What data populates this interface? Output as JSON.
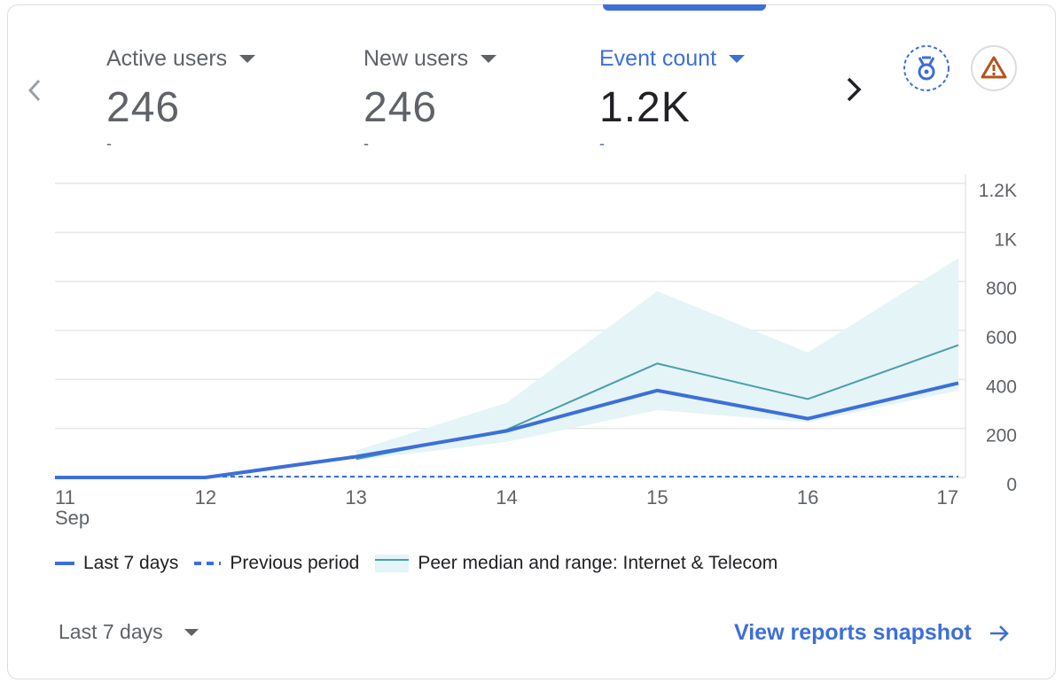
{
  "metrics": [
    {
      "label": "Active users",
      "value": "246",
      "delta": "-",
      "selected": false
    },
    {
      "label": "New users",
      "value": "246",
      "delta": "-",
      "selected": false
    },
    {
      "label": "Event count",
      "value": "1.2K",
      "delta": "-",
      "selected": true
    }
  ],
  "icons": {
    "prev": "chevron-left-icon",
    "next": "chevron-right-icon",
    "benchmark": "benchmark-medal-icon",
    "alert": "warning-triangle-icon",
    "view_arrow": "arrow-right-icon"
  },
  "colors": {
    "accent": "#3c6fd8",
    "peer_line": "#4a9ea8",
    "peer_range": "#e4f4f7",
    "warning": "#b5521c",
    "gridline": "#e6e6e6"
  },
  "chart_data": {
    "type": "line",
    "x": [
      "11",
      "12",
      "13",
      "14",
      "15",
      "16",
      "17"
    ],
    "x_sub_label": "Sep",
    "y_ticks": [
      "0",
      "200",
      "400",
      "600",
      "800",
      "1K",
      "1.2K"
    ],
    "ylim": [
      0,
      1200
    ],
    "grid": true,
    "y_axis_position": "right",
    "legend_position": "bottom-left",
    "series": [
      {
        "name": "Last 7 days",
        "style": "solid",
        "values": [
          0,
          0,
          85,
          190,
          355,
          240,
          385
        ]
      },
      {
        "name": "Previous period",
        "style": "dashed",
        "values": [
          0,
          0,
          0,
          0,
          0,
          0,
          0
        ]
      },
      {
        "name": "Peer median and range: Internet & Telecom",
        "style": "band",
        "median": [
          null,
          null,
          75,
          195,
          465,
          320,
          540
        ],
        "low": [
          null,
          null,
          70,
          145,
          275,
          225,
          355
        ],
        "high": [
          null,
          null,
          110,
          305,
          760,
          510,
          895
        ]
      }
    ]
  },
  "footer": {
    "date_range": "Last 7 days",
    "view_link": "View reports snapshot"
  }
}
